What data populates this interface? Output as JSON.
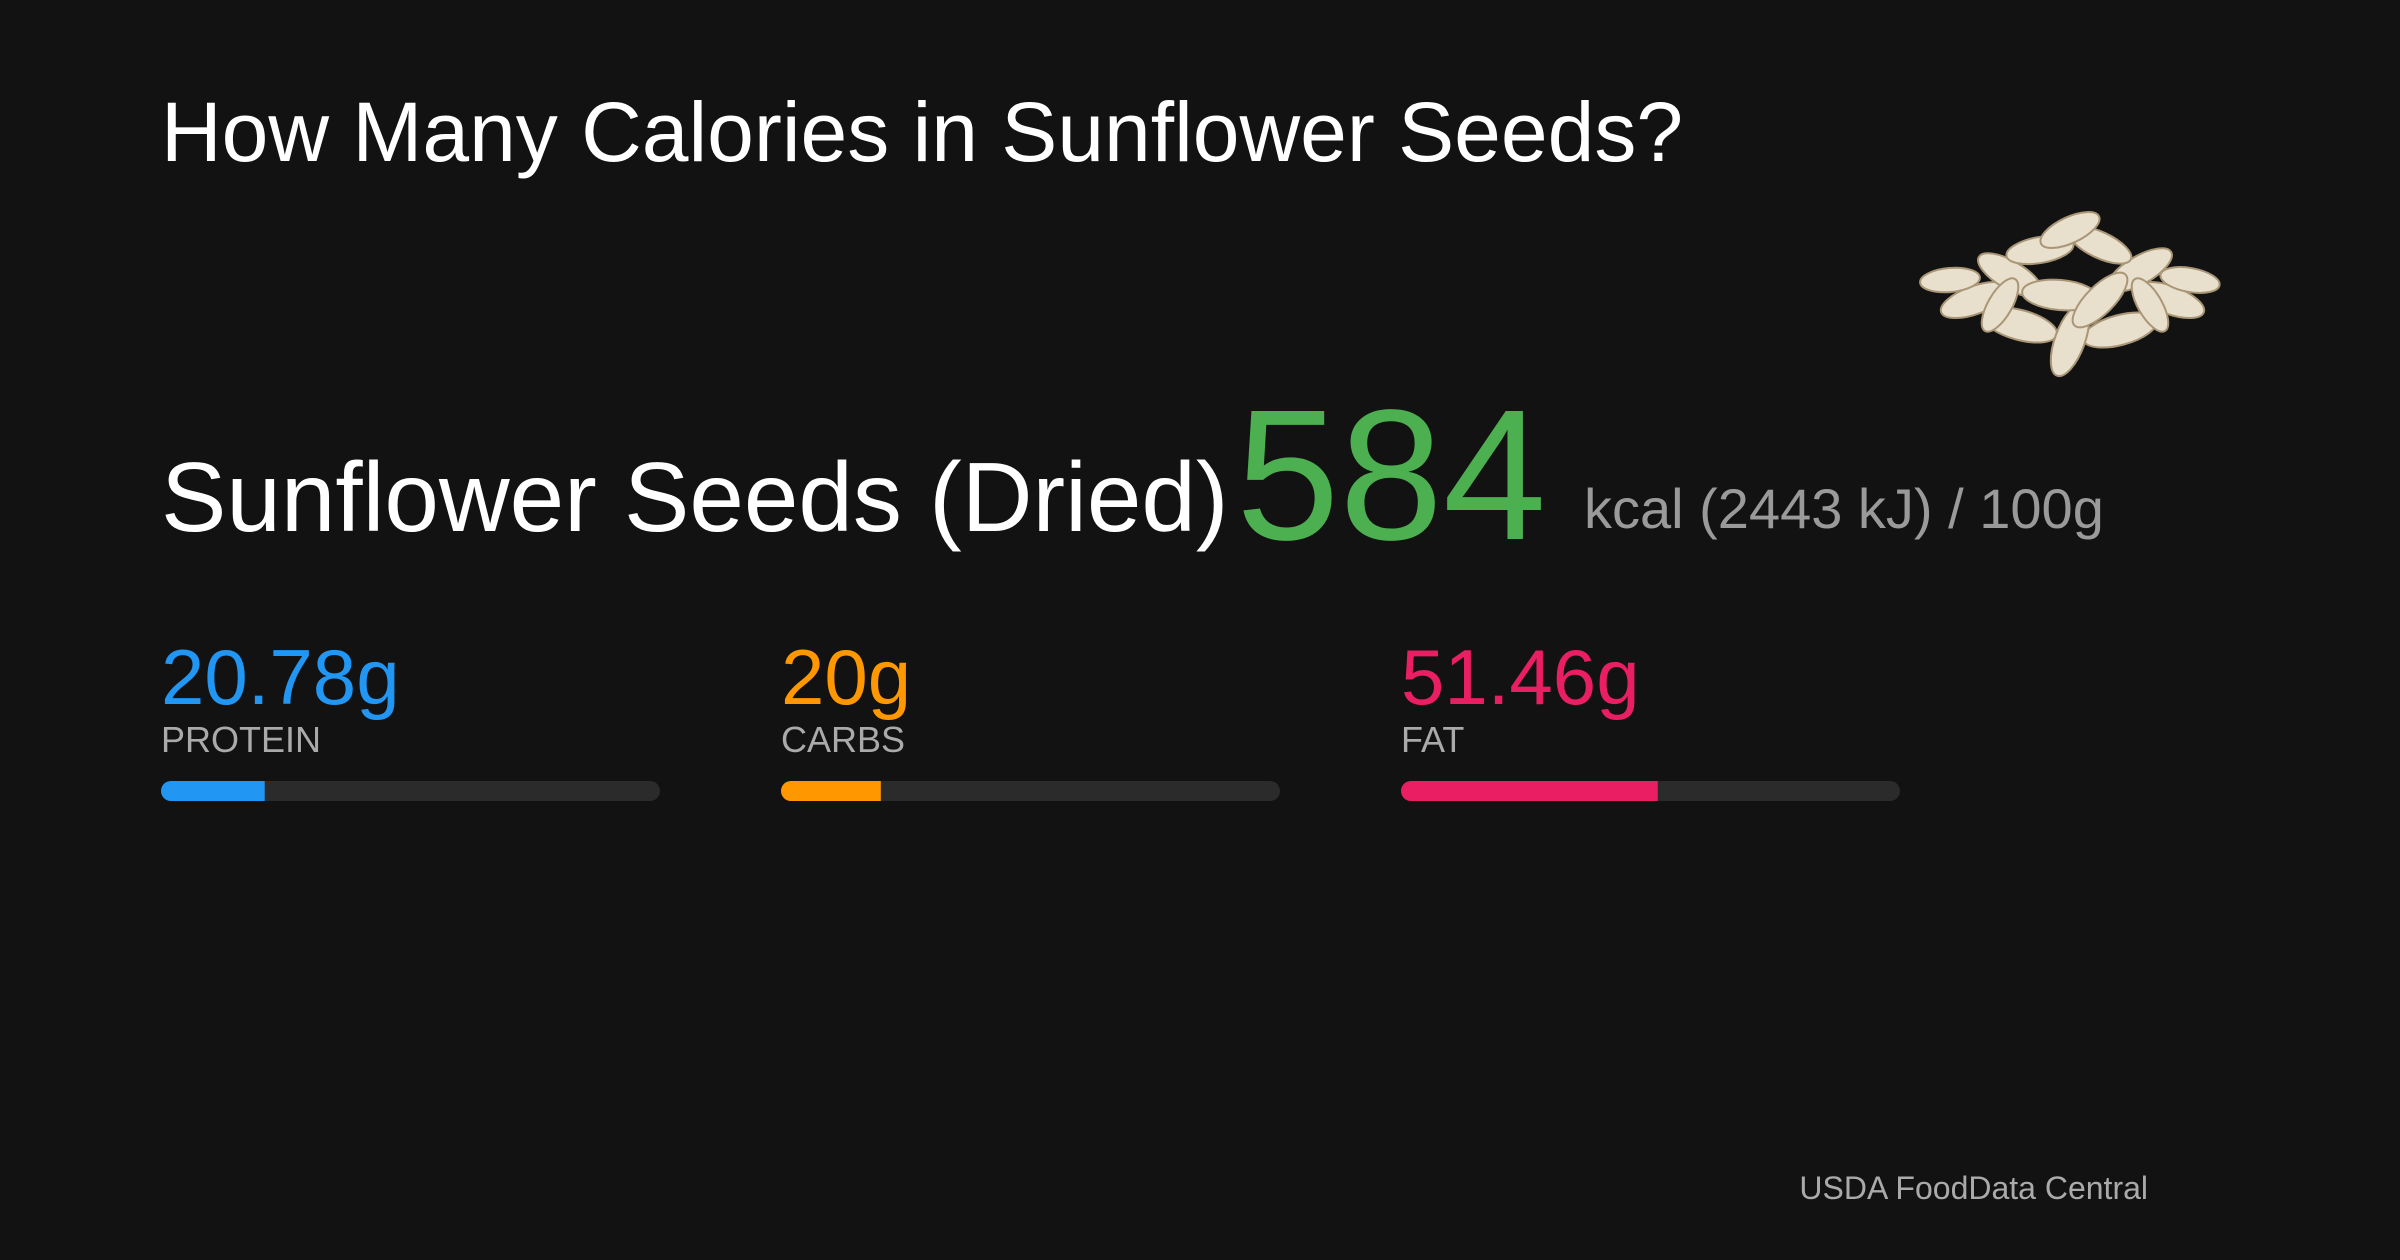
{
  "title": "How Many Calories in Sunflower Seeds?",
  "food": {
    "name": "Sunflower Seeds (Dried)",
    "calories": 584,
    "energy_note": "kcal (2443 kJ) / 100g"
  },
  "macros": [
    {
      "amount": 20.78,
      "amount_label": "20.78g",
      "name": "PROTEIN",
      "color": "#2196f3"
    },
    {
      "amount": 20,
      "amount_label": "20g",
      "name": "CARBS",
      "color": "#ff9800"
    },
    {
      "amount": 51.46,
      "amount_label": "51.46g",
      "name": "FAT",
      "color": "#e91e63"
    }
  ],
  "bar_range": [
    0,
    100
  ],
  "source": "USDA FoodData Central"
}
